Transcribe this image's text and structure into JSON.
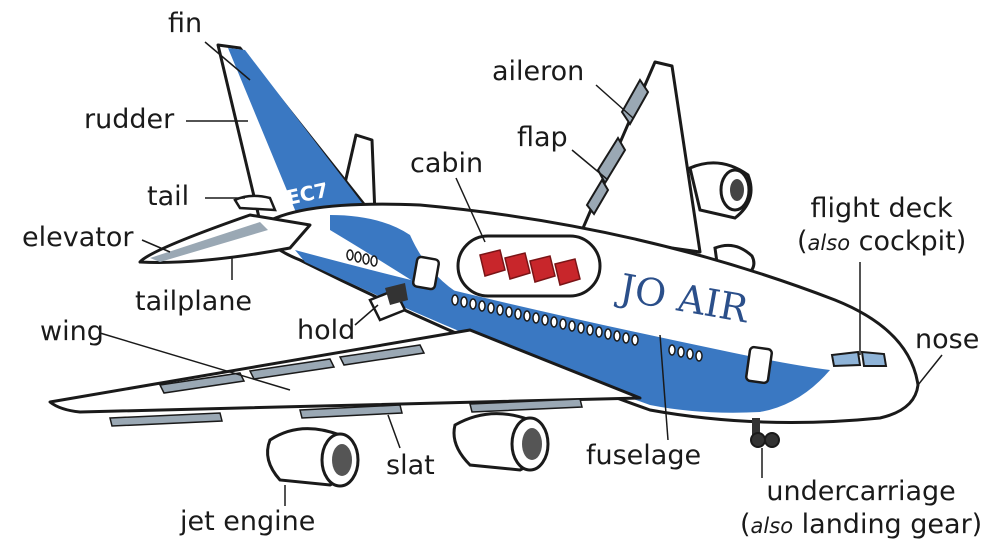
{
  "aircraft": {
    "tail_code": "EC7",
    "livery": "JO AIR",
    "colors": {
      "blue": "#3a78c2",
      "outline": "#1a1a1a",
      "body": "#ffffff",
      "grey": "#9aa8b4",
      "seat": "#c8262b"
    }
  },
  "labels": {
    "fin": "fin",
    "rudder": "rudder",
    "tail": "tail",
    "elevator": "elevator",
    "tailplane": "tailplane",
    "wing": "wing",
    "hold": "hold",
    "cabin": "cabin",
    "aileron": "aileron",
    "flap": "flap",
    "flight_deck": "flight deck",
    "flight_deck_also": "also",
    "flight_deck_alt": "cockpit)",
    "nose": "nose",
    "fuselage": "fuselage",
    "slat": "slat",
    "jet_engine": "jet engine",
    "undercarriage": "undercarriage",
    "undercarriage_also": "also",
    "undercarriage_alt": "landing gear)"
  }
}
